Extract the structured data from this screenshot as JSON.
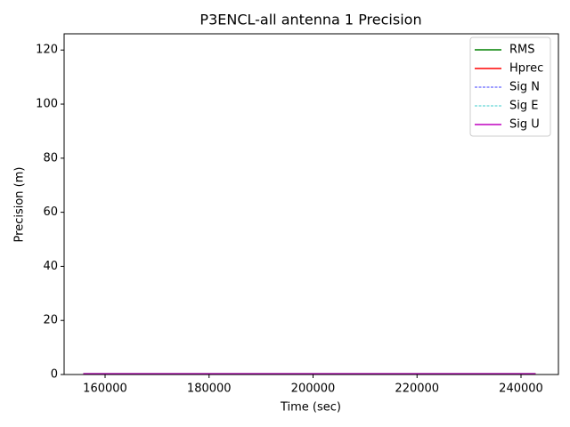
{
  "chart_data": {
    "type": "line",
    "title": "P3ENCL-all antenna 1 Precision",
    "x_label": "Time (sec)",
    "y_label": "Precision (m)",
    "x": [
      155800,
      242800
    ],
    "series": [
      {
        "name": "RMS",
        "color": "#008000",
        "dashed": false,
        "values": [
          0.3,
          0.3
        ]
      },
      {
        "name": "Hprec",
        "color": "#ff0000",
        "dashed": false,
        "values": [
          0.2,
          0.2
        ]
      },
      {
        "name": "Sig N",
        "color": "#0000ff",
        "dashed": true,
        "values": [
          0.1,
          0.1
        ]
      },
      {
        "name": "Sig E",
        "color": "#00bfbf",
        "dashed": true,
        "values": [
          0.1,
          0.1
        ]
      },
      {
        "name": "Sig U",
        "color": "#bf00bf",
        "dashed": false,
        "values": [
          0.3,
          0.3
        ]
      }
    ],
    "xlim": [
      152120,
      247195
    ],
    "xticks": [
      160000,
      180000,
      200000,
      220000,
      240000
    ],
    "ylim": [
      0,
      126
    ],
    "yticks": [
      0,
      20,
      40,
      60,
      80,
      100,
      120
    ],
    "legend": "upper right"
  }
}
